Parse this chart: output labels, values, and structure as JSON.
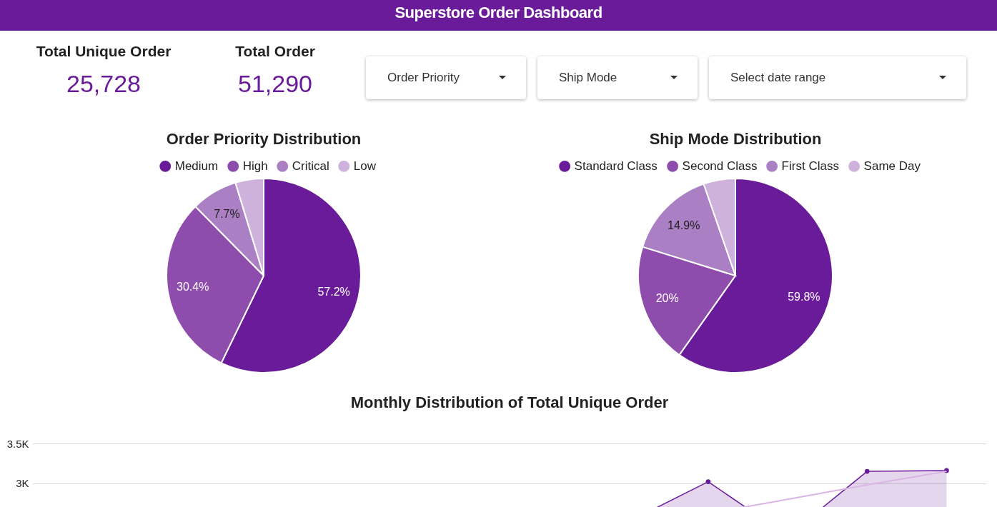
{
  "chart_data": [
    {
      "type": "other",
      "title": "Superstore Order Dashboard",
      "categories": [
        "Total Unique Order",
        "Total Order"
      ],
      "value_labels": [
        "25,728",
        "51,290"
      ],
      "annotations": [
        "Order Priority",
        "Ship Mode",
        "Select date range"
      ]
    },
    {
      "type": "pie",
      "title": "Order Priority Distribution",
      "categories": [
        "Medium",
        "High",
        "Critical",
        "Low"
      ],
      "values": [
        57.2,
        30.4,
        7.7,
        4.7
      ],
      "colors": [
        "#6a1b9a",
        "#8e4dad",
        "#ab7fc4",
        "#ceb1dc"
      ],
      "value_labels": [
        "57.2%",
        "30.4%",
        "7.7%",
        null
      ],
      "legend": "top"
    },
    {
      "type": "pie",
      "title": "Ship Mode Distribution",
      "categories": [
        "Standard Class",
        "Second Class",
        "First Class",
        "Same Day"
      ],
      "values": [
        59.8,
        20,
        14.9,
        5.3
      ],
      "colors": [
        "#6a1b9a",
        "#8e4dad",
        "#ab7fc4",
        "#ceb1dc"
      ],
      "value_labels": [
        "59.8%",
        "20%",
        "14.9%",
        null
      ],
      "legend": "top"
    },
    {
      "type": "line",
      "title": "Monthly Distribution of Total Unique Order",
      "categories": [
        null,
        null,
        null,
        null,
        null,
        null,
        null,
        null,
        null,
        null,
        null,
        null
      ],
      "ylim": [
        2300,
        3500
      ],
      "yticks": [
        {
          "value": 3000,
          "label": "3K"
        },
        {
          "value": 3500,
          "label": "3.5K"
        }
      ],
      "tick_labels": "y",
      "grid": "y",
      "series": [
        {
          "type": "area",
          "color": "#6a1b9a",
          "values": [
            null,
            null,
            null,
            null,
            null,
            null,
            null,
            2520,
            3020,
            2340,
            3150,
            3160
          ]
        },
        {
          "type": "scatter",
          "color": "#6a1b9a",
          "values": [
            null,
            null,
            null,
            null,
            null,
            null,
            null,
            null,
            3020,
            null,
            3150,
            3160
          ]
        },
        {
          "type": "line",
          "color": "#d9b6e6",
          "values": [
            null,
            null,
            null,
            null,
            null,
            null,
            null,
            null,
            2620,
            2800,
            2980,
            3150
          ]
        }
      ]
    }
  ]
}
